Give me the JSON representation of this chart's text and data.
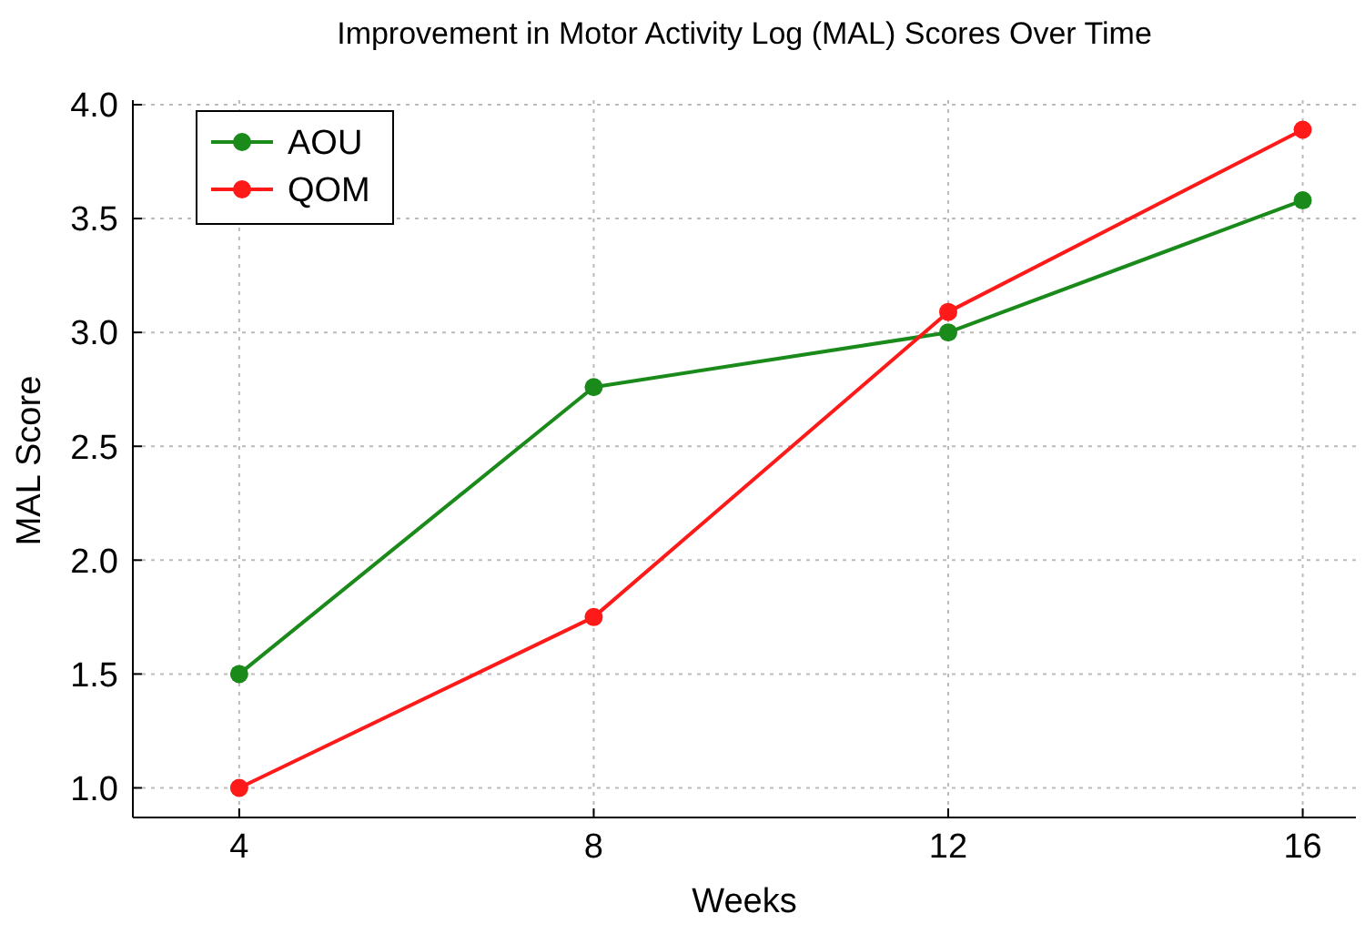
{
  "chart_data": {
    "type": "line",
    "title": "Improvement in Motor Activity Log (MAL) Scores Over Time",
    "xlabel": "Weeks",
    "ylabel": "MAL Score",
    "x": [
      4,
      8,
      12,
      16
    ],
    "series": [
      {
        "name": "AOU",
        "color": "#1a8a1a",
        "values": [
          1.5,
          2.76,
          3.0,
          3.58
        ]
      },
      {
        "name": "QOM",
        "color": "#ff1a1a",
        "values": [
          1.0,
          1.75,
          3.09,
          3.89
        ]
      }
    ],
    "xlim": [
      2.8,
      16.6
    ],
    "xticks": [
      4,
      8,
      12,
      16
    ],
    "ylim": [
      0.87,
      4.02
    ],
    "yticks": [
      {
        "value": 1,
        "label": "1.0"
      },
      {
        "value": 1.5,
        "label": "1.5"
      },
      {
        "value": 2,
        "label": "2.0"
      },
      {
        "value": 2.5,
        "label": "2.5"
      },
      {
        "value": 3,
        "label": "3.0"
      },
      {
        "value": 3.5,
        "label": "3.5"
      },
      {
        "value": 4,
        "label": "4.0"
      }
    ],
    "grid": true,
    "legend": "top left",
    "marker": "circle",
    "line_style": "solid"
  }
}
